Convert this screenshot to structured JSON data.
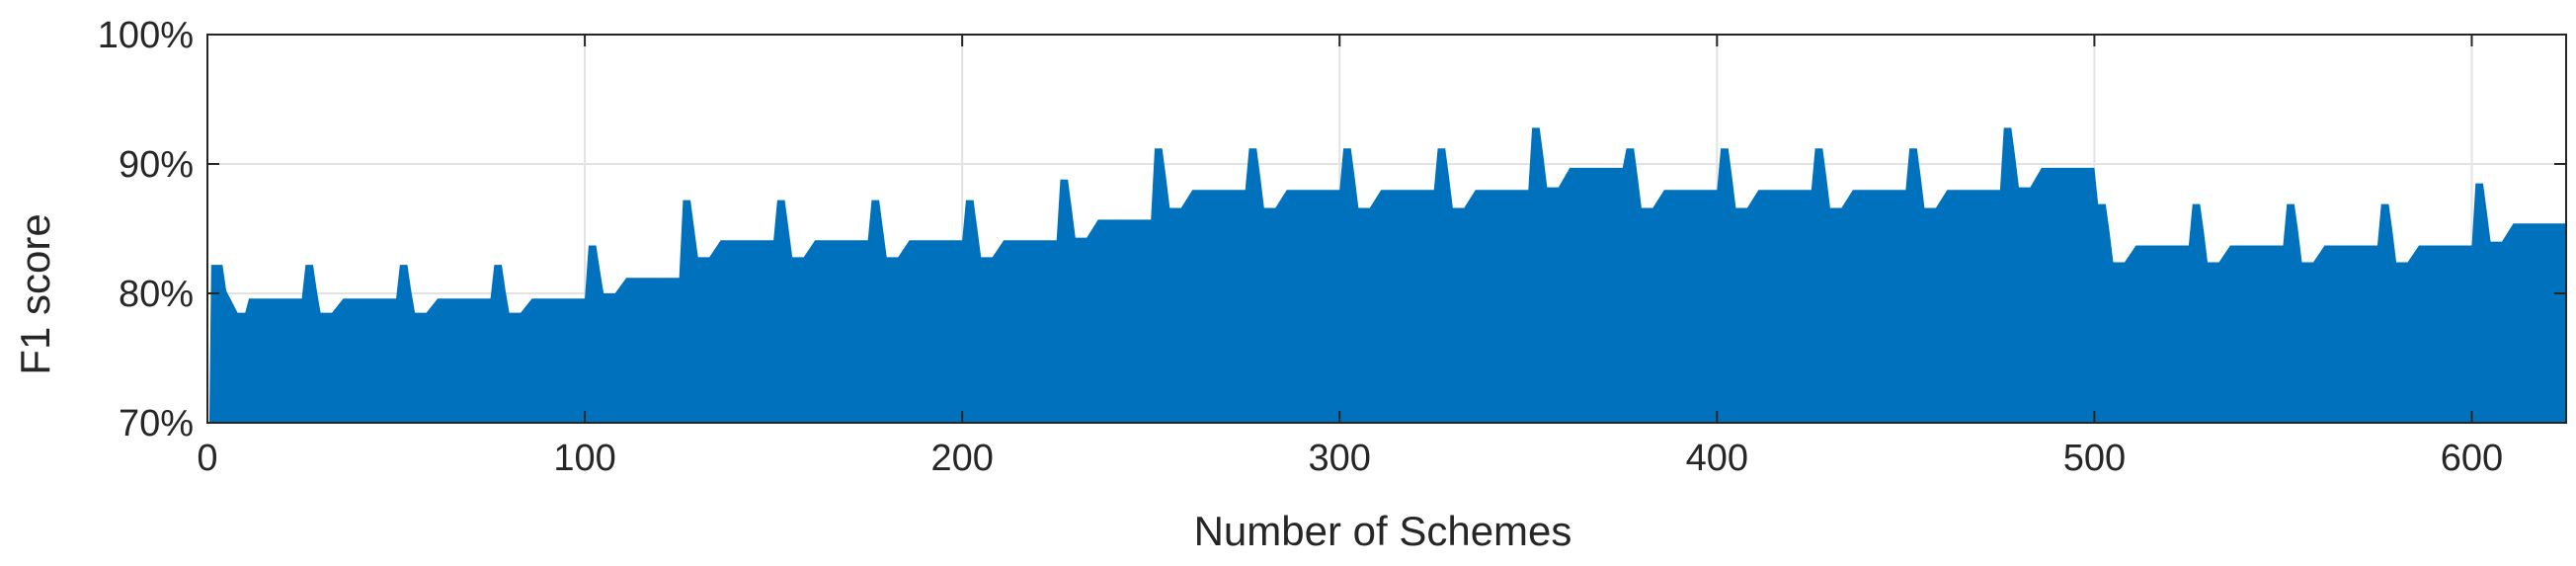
{
  "chart_data": {
    "type": "area",
    "title": "",
    "xlabel": "Number of Schemes",
    "ylabel": "F1 score",
    "xlim": [
      0,
      625
    ],
    "ylim": [
      70,
      100
    ],
    "xticks": [
      0,
      100,
      200,
      300,
      400,
      500,
      600
    ],
    "xtick_labels": [
      "0",
      "100",
      "200",
      "300",
      "400",
      "500",
      "600"
    ],
    "yticks": [
      70,
      80,
      90,
      100
    ],
    "ytick_labels": [
      "70%",
      "80%",
      "90%",
      "100%"
    ],
    "grid": true,
    "legend": "none",
    "series": [
      {
        "color": "#0072BD",
        "x": [
          0,
          0.5,
          1,
          4,
          5,
          8,
          9,
          10,
          11,
          12,
          25,
          26,
          28,
          29,
          30,
          32,
          33,
          36,
          37,
          50,
          51,
          53,
          54,
          55,
          57,
          58,
          61,
          62,
          75,
          76,
          78,
          79,
          80,
          82,
          83,
          86,
          87,
          100,
          101,
          103,
          104,
          105,
          107,
          108,
          111,
          112,
          125,
          126,
          128,
          129,
          130,
          132,
          133,
          136,
          137,
          150,
          151,
          153,
          154,
          155,
          157,
          158,
          161,
          162,
          175,
          176,
          178,
          179,
          180,
          182,
          183,
          186,
          187,
          200,
          201,
          203,
          204,
          205,
          207,
          208,
          211,
          212,
          225,
          226,
          228,
          229,
          230,
          232,
          233,
          236,
          237,
          250,
          251,
          253,
          254,
          255,
          257,
          258,
          261,
          262,
          275,
          276,
          278,
          279,
          280,
          282,
          283,
          286,
          287,
          300,
          301,
          303,
          304,
          305,
          307,
          308,
          311,
          312,
          325,
          326,
          328,
          329,
          330,
          332,
          333,
          336,
          337,
          350,
          351,
          353,
          354,
          355,
          357,
          358,
          361,
          362,
          375,
          376,
          378,
          379,
          380,
          382,
          383,
          386,
          387,
          400,
          401,
          403,
          404,
          405,
          407,
          408,
          411,
          412,
          425,
          426,
          428,
          429,
          430,
          432,
          433,
          436,
          437,
          450,
          451,
          453,
          454,
          455,
          457,
          458,
          461,
          462,
          475,
          476,
          478,
          479,
          480,
          482,
          483,
          486,
          487,
          500,
          501,
          503,
          504,
          505,
          507,
          508,
          511,
          512,
          525,
          526,
          528,
          529,
          530,
          532,
          533,
          536,
          537,
          550,
          551,
          553,
          554,
          555,
          557,
          558,
          561,
          562,
          575,
          576,
          578,
          579,
          580,
          582,
          583,
          586,
          587,
          600,
          601,
          603,
          604,
          605,
          607,
          608,
          611,
          612,
          625
        ],
        "y": [
          70,
          70,
          82.2,
          82.2,
          80.2,
          78.5,
          78.5,
          78.5,
          79.6,
          79.6,
          79.6,
          82.2,
          82.2,
          80.2,
          78.5,
          78.5,
          78.5,
          79.6,
          79.6,
          79.6,
          82.2,
          82.2,
          80.2,
          78.5,
          78.5,
          78.5,
          79.6,
          79.6,
          79.6,
          82.2,
          82.2,
          80.2,
          78.5,
          78.5,
          78.5,
          79.6,
          79.6,
          79.6,
          83.7,
          83.7,
          81.8,
          80.0,
          80.0,
          80.0,
          81.2,
          81.2,
          81.2,
          87.2,
          87.2,
          85.0,
          82.8,
          82.8,
          82.8,
          84.1,
          84.1,
          84.1,
          87.2,
          87.2,
          85.0,
          82.8,
          82.8,
          82.8,
          84.1,
          84.1,
          84.1,
          87.2,
          87.2,
          85.0,
          82.8,
          82.8,
          82.8,
          84.1,
          84.1,
          84.1,
          87.2,
          87.2,
          85.0,
          82.8,
          82.8,
          82.8,
          84.1,
          84.1,
          84.1,
          88.8,
          88.8,
          86.6,
          84.3,
          84.3,
          84.3,
          85.7,
          85.7,
          85.7,
          91.2,
          91.2,
          89.0,
          86.6,
          86.6,
          86.6,
          88.0,
          88.0,
          88.0,
          91.2,
          91.2,
          89.0,
          86.6,
          86.6,
          86.6,
          88.0,
          88.0,
          88.0,
          91.2,
          91.2,
          89.0,
          86.6,
          86.6,
          86.6,
          88.0,
          88.0,
          88.0,
          91.2,
          91.2,
          89.0,
          86.6,
          86.6,
          86.6,
          88.0,
          88.0,
          88.0,
          92.8,
          92.8,
          90.6,
          88.2,
          88.2,
          88.2,
          89.7,
          89.7,
          89.7,
          91.2,
          91.2,
          89.0,
          86.6,
          86.6,
          86.6,
          88.0,
          88.0,
          88.0,
          91.2,
          91.2,
          89.0,
          86.6,
          86.6,
          86.6,
          88.0,
          88.0,
          88.0,
          91.2,
          91.2,
          89.0,
          86.6,
          86.6,
          86.6,
          88.0,
          88.0,
          88.0,
          91.2,
          91.2,
          89.0,
          86.6,
          86.6,
          86.6,
          88.0,
          88.0,
          88.0,
          92.8,
          92.8,
          90.6,
          88.2,
          88.2,
          88.2,
          89.7,
          89.7,
          89.7,
          86.9,
          86.9,
          84.8,
          82.4,
          82.4,
          82.4,
          83.7,
          83.7,
          83.7,
          86.9,
          86.9,
          84.8,
          82.4,
          82.4,
          82.4,
          83.7,
          83.7,
          83.7,
          86.9,
          86.9,
          84.8,
          82.4,
          82.4,
          82.4,
          83.7,
          83.7,
          83.7,
          86.9,
          86.9,
          84.8,
          82.4,
          82.4,
          82.4,
          83.7,
          83.7,
          83.7,
          88.5,
          88.5,
          86.3,
          84.0,
          84.0,
          84.0,
          85.4,
          85.4,
          85.4
        ]
      }
    ]
  }
}
